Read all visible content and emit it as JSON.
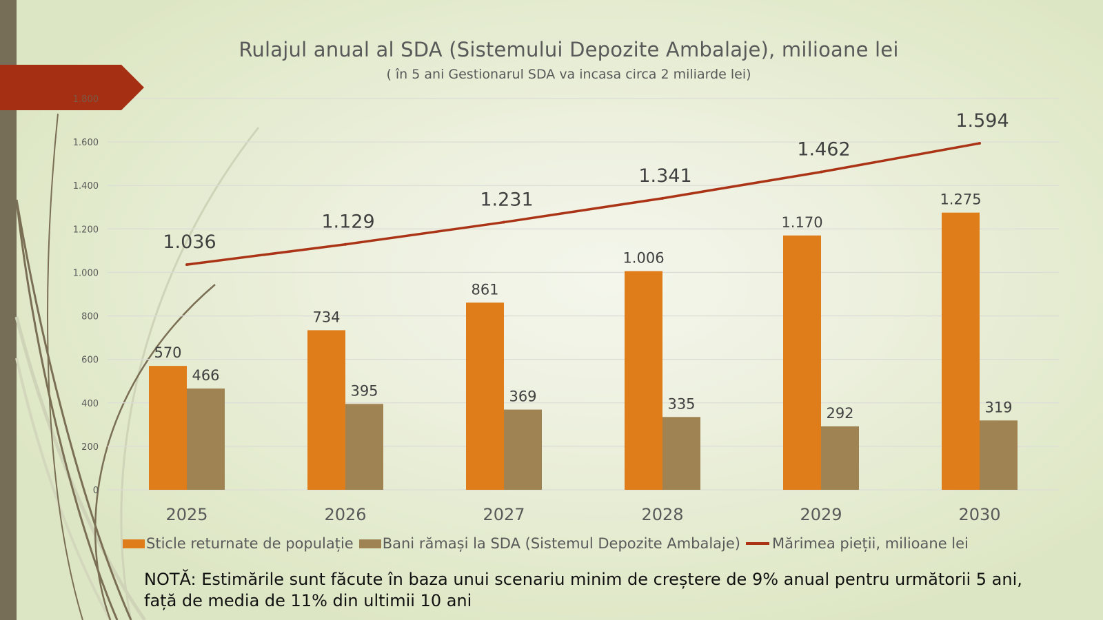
{
  "slide": {
    "title": "Rulajul anual al SDA (Sistemului Depozite Ambalaje), milioane lei",
    "subtitle": "( în 5 ani Gestionarul SDA va incasa circa 2 miliarde lei)",
    "note": "NOTĂ: Estimările sunt făcute în baza unui scenariu minim de creștere de 9% anual pentru următorii 5 ani, față de media de 11% din ultimii 10 ani"
  },
  "colors": {
    "sticle": "#df7d1b",
    "bani": "#a08352",
    "marime": "#ab3417",
    "accent_arrow": "#a52f12",
    "left_bar": "#766e56"
  },
  "chart_data": {
    "type": "bar",
    "title": "Rulajul anual al SDA (Sistemului Depozite Ambalaje), milioane lei",
    "subtitle": "( în 5 ani Gestionarul SDA va incasa circa 2 miliarde lei)",
    "xlabel": "",
    "ylabel": "",
    "categories": [
      "2025",
      "2026",
      "2027",
      "2028",
      "2029",
      "2030"
    ],
    "ylim": [
      0,
      1800
    ],
    "yticks": [
      0,
      200,
      400,
      600,
      800,
      1000,
      1200,
      1400,
      1600,
      1800
    ],
    "ytick_labels": [
      "0",
      "200",
      "400",
      "600",
      "800",
      "1.000",
      "1.200",
      "1.400",
      "1.600",
      "1.800"
    ],
    "grid": true,
    "legend_position": "bottom",
    "series": [
      {
        "name": "Sticle returnate de populație",
        "type": "bar",
        "values": [
          570,
          734,
          861,
          1006,
          1170,
          1275
        ],
        "labels": [
          "570",
          "734",
          "861",
          "1.006",
          "1.170",
          "1.275"
        ]
      },
      {
        "name": "Bani rămași la SDA (Sistemul Depozite Ambalaje)",
        "type": "bar",
        "values": [
          466,
          395,
          369,
          335,
          292,
          319
        ],
        "labels": [
          "466",
          "395",
          "369",
          "335",
          "292",
          "319"
        ]
      },
      {
        "name": "Mărimea pieții, milioane lei",
        "type": "line",
        "values": [
          1036,
          1129,
          1231,
          1341,
          1462,
          1594
        ],
        "labels": [
          "1.036",
          "1.129",
          "1.231",
          "1.341",
          "1.462",
          "1.594"
        ]
      }
    ]
  }
}
